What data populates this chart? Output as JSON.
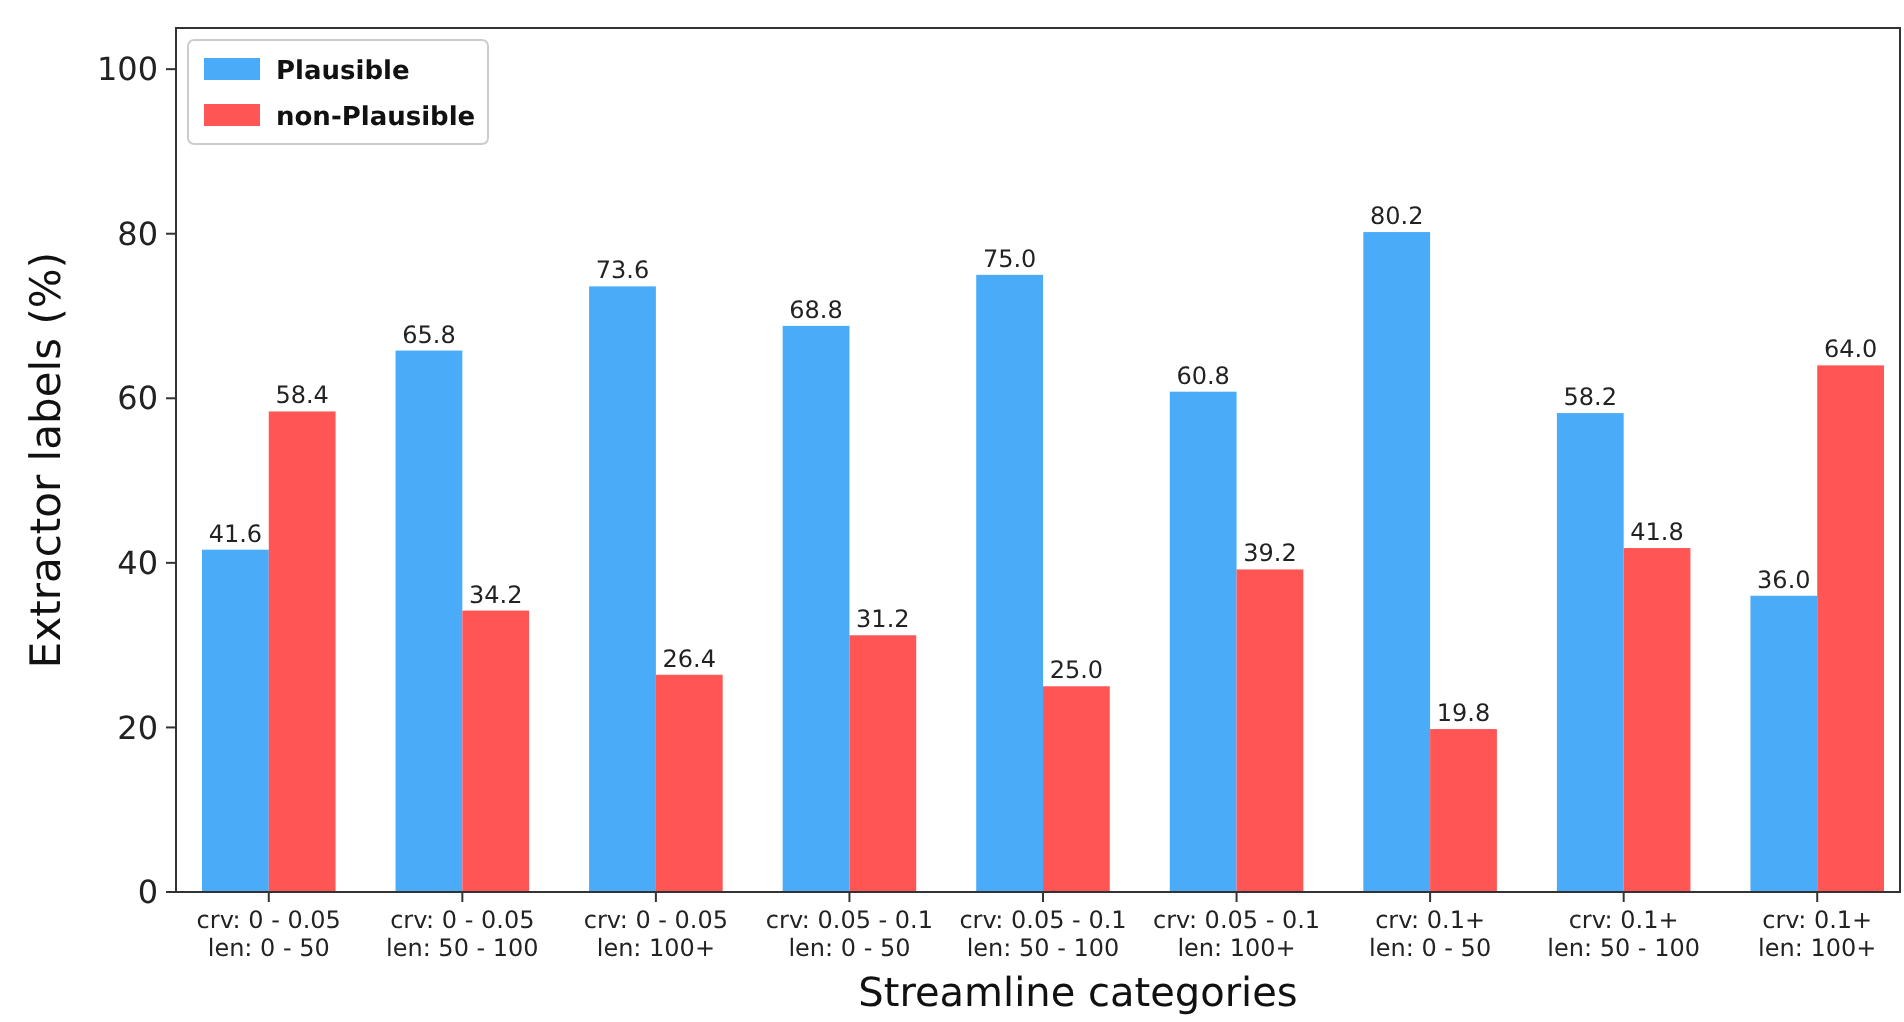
{
  "chart_data": {
    "type": "bar",
    "xlabel": "Streamline categories",
    "ylabel": "Extractor labels (%)",
    "categories": [
      "crv: 0 - 0.05\nlen: 0 - 50",
      "crv: 0 - 0.05\nlen: 50 - 100",
      "crv: 0 - 0.05\nlen: 100+",
      "crv: 0.05 - 0.1\nlen: 0 - 50",
      "crv: 0.05 - 0.1\nlen: 50 - 100",
      "crv: 0.05 - 0.1\nlen: 100+",
      "crv: 0.1+\nlen: 0 - 50",
      "crv: 0.1+\nlen: 50 - 100",
      "crv: 0.1+\nlen: 100+"
    ],
    "series": [
      {
        "name": "Plausible",
        "color": "#4aabf9",
        "values": [
          41.6,
          65.8,
          73.6,
          68.8,
          75.0,
          60.8,
          80.2,
          58.2,
          36.0
        ],
        "value_labels": [
          "41.6",
          "65.8",
          "73.6",
          "68.8",
          "75.0",
          "60.8",
          "80.2",
          "58.2",
          "36.0"
        ]
      },
      {
        "name": "non-Plausible",
        "color": "#ff5555",
        "values": [
          58.4,
          34.2,
          26.4,
          31.2,
          25.0,
          39.2,
          19.8,
          41.8,
          64.0
        ],
        "value_labels": [
          "58.4",
          "34.2",
          "26.4",
          "31.2",
          "25.0",
          "39.2",
          "19.8",
          "41.8",
          "64.0"
        ]
      }
    ],
    "ylim": [
      0,
      105
    ],
    "yticks": [
      0,
      20,
      40,
      60,
      80,
      100
    ],
    "grid": false,
    "legend": "top left"
  }
}
